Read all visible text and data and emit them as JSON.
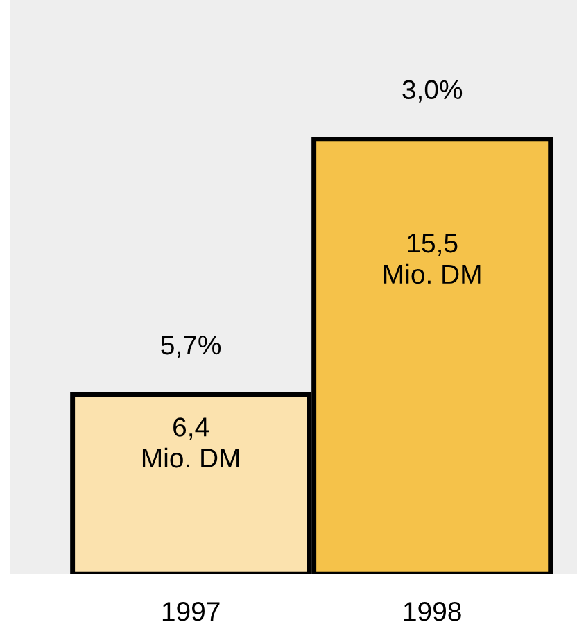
{
  "chart_data": {
    "type": "bar",
    "categories": [
      "1997",
      "1998"
    ],
    "values": [
      6.4,
      15.5
    ],
    "colors": [
      "#fbe2ae",
      "#f5c24a"
    ],
    "value_labels": [
      "6,4\nMio. DM",
      "15,5\nMio. DM"
    ],
    "annotations": [
      {
        "text": "5,7%",
        "x": "1997",
        "y": 6.4
      },
      {
        "text": "3,0%",
        "x": "1998",
        "y": 15.5
      }
    ],
    "grid": false,
    "legend": false
  }
}
